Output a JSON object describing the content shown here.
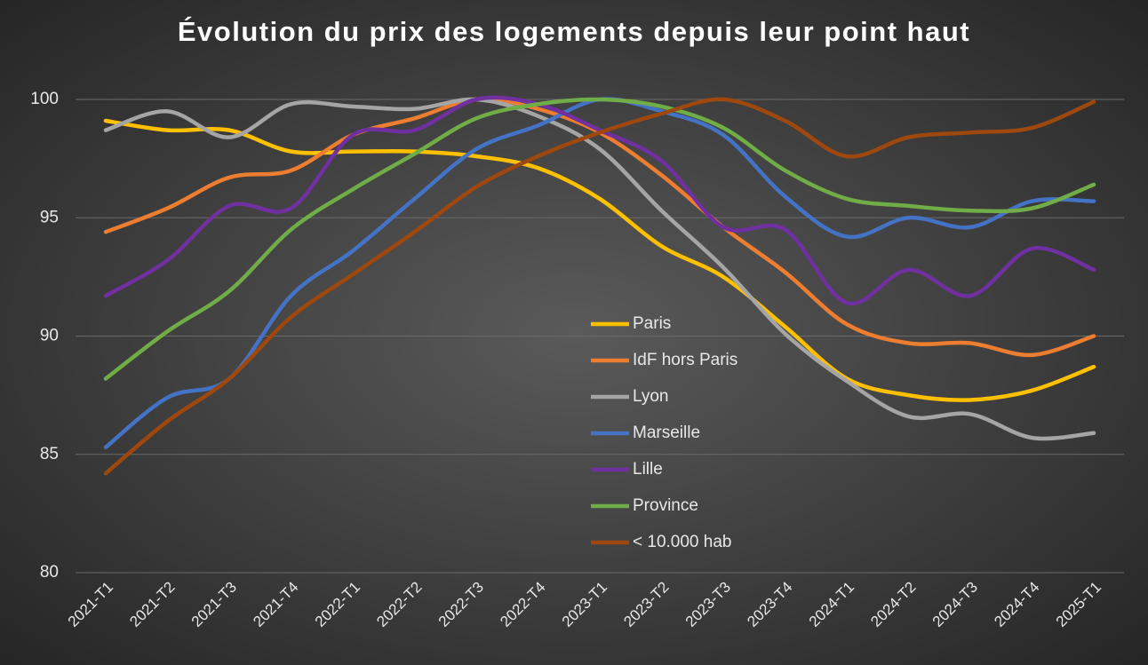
{
  "chart_data": {
    "type": "line",
    "title": "Évolution du prix des logements depuis leur point haut",
    "categories": [
      "2021-T1",
      "2021-T2",
      "2021-T3",
      "2021-T4",
      "2022-T1",
      "2022-T2",
      "2022-T3",
      "2022-T4",
      "2023-T1",
      "2023-T2",
      "2023-T3",
      "2023-T4",
      "2024-T1",
      "2024-T2",
      "2024-T3",
      "2024-T4",
      "2025-T1"
    ],
    "series": [
      {
        "name": "Paris",
        "color": "#FFC000",
        "values": [
          99.1,
          98.7,
          98.7,
          97.8,
          97.8,
          97.8,
          97.6,
          97.1,
          95.8,
          93.8,
          92.5,
          90.4,
          88.2,
          87.5,
          87.3,
          87.7,
          88.7
        ]
      },
      {
        "name": "IdF hors Paris",
        "color": "#ED7D31",
        "values": [
          94.4,
          95.4,
          96.7,
          97.0,
          98.5,
          99.2,
          100,
          99.6,
          98.6,
          96.8,
          94.6,
          92.7,
          90.5,
          89.7,
          89.7,
          89.2,
          90.0
        ]
      },
      {
        "name": "Lyon",
        "color": "#A5A5A5",
        "values": [
          98.7,
          99.5,
          98.4,
          99.8,
          99.7,
          99.6,
          100,
          99.3,
          97.9,
          95.3,
          92.9,
          90.1,
          88.1,
          86.6,
          86.7,
          85.7,
          85.9
        ]
      },
      {
        "name": "Marseille",
        "color": "#4472C4",
        "values": [
          85.3,
          87.4,
          88.2,
          91.7,
          93.6,
          95.8,
          97.9,
          98.9,
          100,
          99.5,
          98.5,
          95.9,
          94.2,
          95.0,
          94.6,
          95.7,
          95.7
        ]
      },
      {
        "name": "Lille",
        "color": "#7030A0",
        "values": [
          91.7,
          93.2,
          95.5,
          95.4,
          98.5,
          98.7,
          100,
          99.8,
          98.7,
          97.4,
          94.6,
          94.5,
          91.4,
          92.8,
          91.7,
          93.7,
          92.8
        ]
      },
      {
        "name": "Province",
        "color": "#70AD47",
        "values": [
          88.2,
          90.2,
          91.9,
          94.5,
          96.2,
          97.7,
          99.2,
          99.8,
          100,
          99.7,
          98.8,
          97.0,
          95.8,
          95.5,
          95.3,
          95.4,
          96.4
        ]
      },
      {
        "name": "< 10.000 hab",
        "color": "#9E480E",
        "values": [
          84.2,
          86.4,
          88.2,
          90.8,
          92.6,
          94.4,
          96.3,
          97.6,
          98.6,
          99.4,
          100,
          99.1,
          97.6,
          98.4,
          98.6,
          98.8,
          99.9
        ]
      }
    ],
    "ylim": [
      80,
      100
    ],
    "yticks": [
      80,
      85,
      90,
      95,
      100
    ],
    "grid": true
  }
}
